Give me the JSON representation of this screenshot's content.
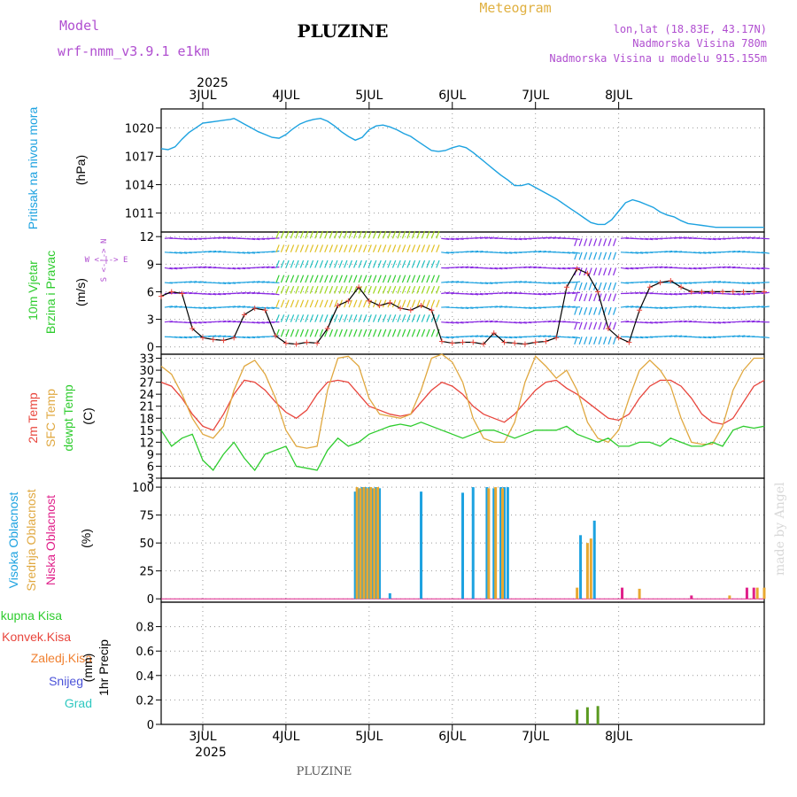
{
  "header": {
    "model_label": "Model",
    "model_name": "wrf-nmm_v3.9.1 e1km",
    "station_title": "PLUZINE",
    "product": "Meteogram",
    "coords": "lon,lat (18.83E, 43.17N)",
    "elevation": "Nadmorska Visina 780m",
    "model_elevation": "Nadmorska Visina u modelu 915.155m",
    "year_top": "2025",
    "year_bottom": "2025",
    "footer_station": "PLUZINE",
    "watermark": "made by Angel"
  },
  "days": [
    "3JUL",
    "4JUL",
    "5JUL",
    "6JUL",
    "7JUL",
    "8JUL"
  ],
  "colors": {
    "pressure": "#1da2e0",
    "temp2m": "#e8453c",
    "sfc": "#e0a840",
    "dewpt": "#2ecc2e",
    "high_cloud": "#1da2e0",
    "mid_cloud": "#e8a830",
    "low_cloud": "#e0208a",
    "total_precip": "#2ecc2e",
    "conv_precip": "#e8453c",
    "frozen": "#f08030",
    "snow": "#4a52d8",
    "hail": "#2ec8c0"
  },
  "chart_data": [
    {
      "type": "line",
      "panel": "pressure",
      "ylabel": "Pritisak na nivou mora",
      "unit": "(hPa)",
      "ylim": [
        1009,
        1022
      ],
      "yticks": [
        1011,
        1014,
        1017,
        1020
      ],
      "x_hours": [
        -12,
        -10,
        -8,
        -6,
        -4,
        -2,
        0,
        2,
        4,
        6,
        8,
        9,
        10,
        12,
        14,
        16,
        18,
        20,
        22,
        24,
        26,
        28,
        30,
        32,
        34,
        36,
        38,
        40,
        42,
        44,
        46,
        48,
        50,
        52,
        54,
        56,
        58,
        60,
        62,
        64,
        66,
        68,
        70,
        72,
        74,
        76,
        78,
        80,
        82,
        84,
        86,
        88,
        90,
        92,
        94,
        96,
        98,
        100,
        102,
        104,
        106,
        108,
        110,
        112,
        114,
        116,
        118,
        120,
        122,
        124,
        126,
        128,
        130,
        132,
        134,
        136,
        138,
        140,
        142,
        144,
        146,
        148,
        150,
        152,
        154,
        156,
        158,
        160,
        162
      ],
      "values": [
        1017.8,
        1017.7,
        1018.0,
        1018.8,
        1019.5,
        1020.0,
        1020.5,
        1020.6,
        1020.7,
        1020.8,
        1020.9,
        1021.0,
        1020.8,
        1020.4,
        1020.0,
        1019.6,
        1019.3,
        1019.0,
        1018.9,
        1019.3,
        1019.9,
        1020.4,
        1020.7,
        1020.9,
        1021.0,
        1020.7,
        1020.2,
        1019.6,
        1019.1,
        1018.7,
        1019.0,
        1019.8,
        1020.2,
        1020.3,
        1020.1,
        1019.8,
        1019.4,
        1019.1,
        1018.6,
        1018.1,
        1017.6,
        1017.5,
        1017.6,
        1017.9,
        1018.1,
        1017.9,
        1017.4,
        1016.8,
        1016.2,
        1015.6,
        1015.0,
        1014.5,
        1013.9,
        1013.9,
        1014.1,
        1013.7,
        1013.3,
        1012.9,
        1012.5,
        1012.0,
        1011.5,
        1011.0,
        1010.5,
        1010.0,
        1009.8,
        1009.8,
        1010.3,
        1011.2,
        1012.1,
        1012.4,
        1012.2,
        1011.9,
        1011.6,
        1011.1,
        1010.8,
        1010.6,
        1010.2,
        1009.9,
        1009.8,
        1009.7,
        1009.6,
        1009.5,
        1009.5,
        1009.5,
        1009.5,
        1009.5,
        1009.5,
        1009.5,
        1009.5
      ]
    },
    {
      "type": "line",
      "panel": "wind",
      "ylabel": "10m Vjetar",
      "ylabel2": "Brzina i Pravac",
      "unit": "(m/s)",
      "ylim": [
        -0.8,
        12.5
      ],
      "yticks": [
        0,
        3,
        6,
        9,
        12
      ],
      "compass": "W <-|-> E",
      "compass_ns": "S <-|-> N",
      "x_hours": [
        -12,
        -9,
        -6,
        -3,
        0,
        3,
        6,
        9,
        12,
        15,
        18,
        21,
        24,
        27,
        30,
        33,
        36,
        39,
        42,
        45,
        48,
        51,
        54,
        57,
        60,
        63,
        66,
        69,
        72,
        75,
        78,
        81,
        84,
        87,
        90,
        93,
        96,
        99,
        102,
        105,
        108,
        111,
        114,
        117,
        120,
        123,
        126,
        129,
        132,
        135,
        138,
        141,
        144,
        147,
        150,
        153,
        156,
        159,
        162
      ],
      "values": [
        5.5,
        6.0,
        5.8,
        2.0,
        1.0,
        0.8,
        0.7,
        1.0,
        3.5,
        4.2,
        4.0,
        1.2,
        0.4,
        0.3,
        0.5,
        0.4,
        2.0,
        4.5,
        5.0,
        6.5,
        5.0,
        4.5,
        4.8,
        4.2,
        4.0,
        4.5,
        4.0,
        0.6,
        0.4,
        0.5,
        0.5,
        0.3,
        1.5,
        0.5,
        0.4,
        0.3,
        0.5,
        0.6,
        1.0,
        6.5,
        8.5,
        8.0,
        6.0,
        2.0,
        1.0,
        0.5,
        4.0,
        6.5,
        7.0,
        7.2,
        6.5,
        6.0,
        6.0,
        6.0,
        6.0,
        6.0,
        6.0,
        6.0,
        6.0
      ]
    },
    {
      "type": "line",
      "panel": "temperature",
      "ylabel": "2m Temp",
      "ylabel2": "SFC Temp",
      "ylabel3": "dewpt Temp",
      "unit": "(C)",
      "ylim": [
        3,
        34
      ],
      "yticks": [
        3,
        6,
        9,
        12,
        15,
        18,
        21,
        24,
        27,
        30,
        33
      ],
      "x_hours": [
        -12,
        -9,
        -6,
        -3,
        0,
        3,
        6,
        9,
        12,
        15,
        18,
        21,
        24,
        27,
        30,
        33,
        36,
        39,
        42,
        45,
        48,
        51,
        54,
        57,
        60,
        63,
        66,
        69,
        72,
        75,
        78,
        81,
        84,
        87,
        90,
        93,
        96,
        99,
        102,
        105,
        108,
        111,
        114,
        117,
        120,
        123,
        126,
        129,
        132,
        135,
        138,
        141,
        144,
        147,
        150,
        153,
        156,
        159,
        162
      ],
      "series": [
        {
          "name": "2m Temp",
          "values": [
            27,
            26,
            23,
            19,
            16,
            15,
            19,
            24,
            27.5,
            27,
            25,
            22,
            19.5,
            18,
            20,
            24,
            27,
            27.5,
            27,
            24,
            21,
            20,
            19,
            18.5,
            19,
            22,
            25,
            27,
            26,
            24,
            21,
            19,
            18,
            17,
            19,
            22,
            25,
            27,
            27.5,
            25.5,
            24,
            22,
            20,
            18,
            17.5,
            19,
            23,
            26,
            27.5,
            27.5,
            26,
            23,
            19,
            17,
            16.5,
            18,
            22,
            26,
            27.5
          ]
        },
        {
          "name": "SFC Temp",
          "values": [
            31,
            29,
            24,
            18,
            14,
            13,
            16,
            25,
            31,
            32.5,
            29,
            23,
            15,
            11,
            10.5,
            11,
            25,
            33,
            33.5,
            31,
            23,
            19,
            18.5,
            18,
            19,
            25,
            33,
            34,
            32,
            27,
            18,
            13,
            12,
            12,
            17,
            27,
            33.5,
            31,
            28,
            30,
            25,
            17,
            13,
            12,
            15,
            23,
            30,
            32.5,
            30,
            26,
            18,
            12,
            11.5,
            11.5,
            16,
            25,
            30,
            33,
            33
          ]
        },
        {
          "name": "dewpt Temp",
          "values": [
            15,
            11,
            13,
            14,
            7.5,
            5,
            9,
            12,
            8,
            5,
            9,
            10,
            11,
            6,
            5.5,
            5,
            10,
            13,
            11,
            12,
            14,
            15,
            16,
            16.5,
            16,
            17,
            16,
            15,
            14,
            13,
            14,
            15,
            15,
            14,
            13,
            14,
            15,
            15,
            15,
            16,
            14,
            13,
            12,
            13,
            11,
            11,
            12,
            12,
            11,
            13,
            12,
            11,
            11,
            12,
            11,
            15,
            16,
            15.5,
            16
          ]
        }
      ]
    },
    {
      "type": "bar",
      "panel": "cloud",
      "ylabel": "Visoka Oblacnost",
      "ylabel2": "Srednja Oblacnost",
      "ylabel3": "Niska Oblacnost",
      "unit": "(%)",
      "ylim": [
        -3,
        108
      ],
      "yticks": [
        0,
        25,
        50,
        75,
        100
      ],
      "series": [
        {
          "name": "Visoka Oblacnost",
          "x": [
            44,
            45,
            46,
            47,
            48,
            49,
            50,
            51,
            54,
            63,
            75,
            78,
            82,
            84,
            86,
            87,
            88,
            109,
            113
          ],
          "values": [
            96,
            99,
            100,
            100,
            100,
            99,
            100,
            99,
            5,
            96,
            95,
            100,
            100,
            99,
            100,
            100,
            100,
            57,
            70
          ]
        },
        {
          "name": "Srednja Oblacnost",
          "x": [
            44.5,
            45.5,
            46.5,
            47.5,
            48.5,
            49.5,
            50.5,
            82.5,
            84.5,
            86.5,
            108,
            111,
            112,
            126,
            152,
            160,
            162
          ],
          "values": [
            100,
            99,
            100,
            99,
            100,
            99,
            100,
            99,
            100,
            99,
            10,
            50,
            54,
            9,
            3,
            10,
            10
          ]
        },
        {
          "name": "Niska Oblacnost",
          "x": [
            121,
            141,
            157,
            159
          ],
          "values": [
            10,
            3,
            10,
            10
          ]
        }
      ]
    },
    {
      "type": "bar",
      "panel": "precip",
      "ylabel": "1hr Precip",
      "unit": "(mm)",
      "legend": [
        "Ukupna Kisa",
        "Konvek.Kisa",
        "Zaledj.Kisa",
        "Snijeg",
        "Grad"
      ],
      "ylim": [
        0,
        1.0
      ],
      "yticks": [
        0,
        0.2,
        0.4,
        0.6,
        0.8
      ],
      "series": [
        {
          "name": "Ukupna Kisa",
          "x": [
            108,
            111,
            114
          ],
          "values": [
            0.12,
            0.14,
            0.15
          ]
        }
      ]
    }
  ]
}
